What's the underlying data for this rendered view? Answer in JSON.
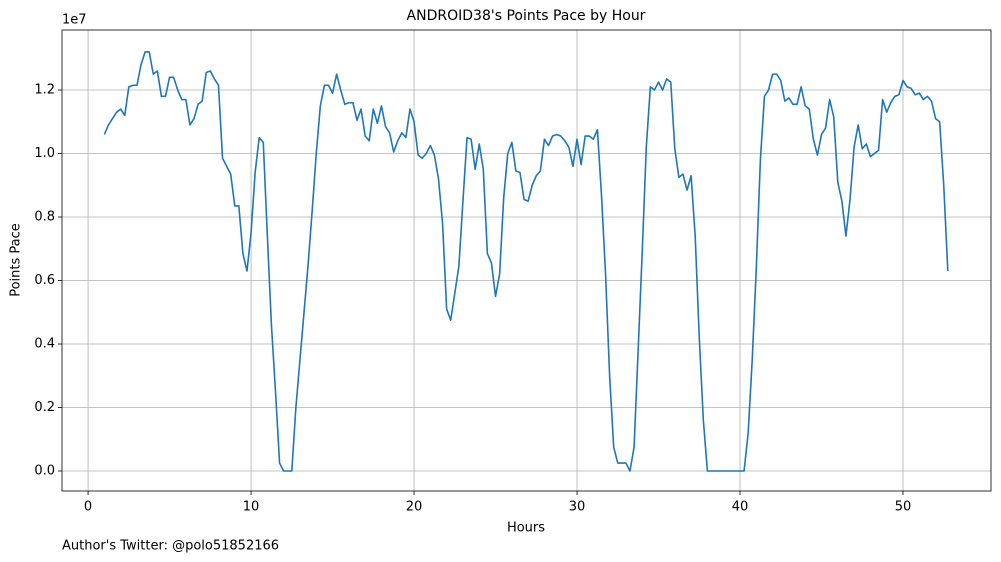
{
  "chart_data": {
    "type": "line",
    "title": "ANDROID38's Points Pace by Hour",
    "xlabel": "Hours",
    "ylabel": "Points Pace",
    "y_offset_label": "1e7",
    "footnote": "Author's Twitter: @polo51852166",
    "color": "#1f77b4",
    "grid": true,
    "xlim": [
      -1.6,
      55.4
    ],
    "xticks": [
      0,
      10,
      20,
      30,
      40,
      50
    ],
    "ylim": [
      -0.063,
      1.389
    ],
    "yticks": [
      {
        "value": 0,
        "label": "0.0"
      },
      0.2,
      0.4,
      0.6,
      0.8,
      {
        "value": 1,
        "label": "1.0"
      },
      1.2
    ],
    "x": [
      1,
      1.25,
      1.5,
      1.75,
      2,
      2.25,
      2.5,
      2.75,
      3,
      3.25,
      3.5,
      3.75,
      4,
      4.25,
      4.5,
      4.75,
      5,
      5.25,
      5.5,
      5.75,
      6,
      6.25,
      6.5,
      6.75,
      7,
      7.25,
      7.5,
      7.75,
      8,
      8.25,
      8.5,
      8.75,
      9,
      9.25,
      9.5,
      9.75,
      10,
      10.25,
      10.5,
      10.75,
      11,
      11.25,
      11.5,
      11.75,
      12,
      12.25,
      12.5,
      12.75,
      13,
      13.25,
      13.5,
      13.75,
      14,
      14.25,
      14.5,
      14.75,
      15,
      15.25,
      15.5,
      15.75,
      16,
      16.25,
      16.5,
      16.75,
      17,
      17.25,
      17.5,
      17.75,
      18,
      18.25,
      18.5,
      18.75,
      19,
      19.25,
      19.5,
      19.75,
      20,
      20.25,
      20.5,
      20.75,
      21,
      21.25,
      21.5,
      21.75,
      22,
      22.25,
      22.5,
      22.75,
      23,
      23.25,
      23.5,
      23.75,
      24,
      24.25,
      24.5,
      24.75,
      25,
      25.25,
      25.5,
      25.75,
      26,
      26.25,
      26.5,
      26.75,
      27,
      27.25,
      27.5,
      27.75,
      28,
      28.25,
      28.5,
      28.75,
      29,
      29.25,
      29.5,
      29.75,
      30,
      30.25,
      30.5,
      30.75,
      31,
      31.25,
      31.5,
      31.75,
      32,
      32.25,
      32.5,
      32.75,
      33,
      33.25,
      33.5,
      33.75,
      34,
      34.25,
      34.5,
      34.75,
      35,
      35.25,
      35.5,
      35.75,
      36,
      36.25,
      36.5,
      36.75,
      37,
      37.25,
      37.5,
      37.75,
      38,
      38.25,
      38.5,
      38.75,
      39,
      39.25,
      39.5,
      39.75,
      40,
      40.25,
      40.5,
      40.75,
      41,
      41.25,
      41.5,
      41.75,
      42,
      42.25,
      42.5,
      42.75,
      43,
      43.25,
      43.5,
      43.75,
      44,
      44.25,
      44.5,
      44.75,
      45,
      45.25,
      45.5,
      45.75,
      46,
      46.25,
      46.5,
      46.75,
      47,
      47.25,
      47.5,
      47.75,
      48,
      48.25,
      48.5,
      48.75,
      49,
      49.25,
      49.5,
      49.75,
      50,
      50.25,
      50.5,
      50.75,
      51,
      51.25,
      51.5,
      51.75,
      52,
      52.25,
      52.5,
      52.75
    ],
    "values": [
      1.06,
      1.09,
      1.11,
      1.13,
      1.14,
      1.12,
      1.21,
      1.215,
      1.215,
      1.28,
      1.32,
      1.32,
      1.25,
      1.26,
      1.18,
      1.18,
      1.24,
      1.24,
      1.2,
      1.17,
      1.17,
      1.09,
      1.11,
      1.155,
      1.165,
      1.255,
      1.26,
      1.235,
      1.215,
      0.985,
      0.96,
      0.935,
      0.835,
      0.835,
      0.685,
      0.63,
      0.75,
      0.94,
      1.05,
      1.035,
      0.74,
      0.46,
      0.25,
      0.025,
      0,
      0,
      0,
      0.2,
      0.35,
      0.5,
      0.65,
      0.82,
      1.0,
      1.15,
      1.215,
      1.215,
      1.19,
      1.25,
      1.2,
      1.155,
      1.16,
      1.16,
      1.105,
      1.14,
      1.055,
      1.04,
      1.14,
      1.095,
      1.15,
      1.085,
      1.065,
      1.005,
      1.04,
      1.065,
      1.05,
      1.14,
      1.1,
      0.995,
      0.985,
      1.0,
      1.025,
      0.995,
      0.92,
      0.78,
      0.51,
      0.475,
      0.56,
      0.645,
      0.85,
      1.05,
      1.045,
      0.95,
      1.03,
      0.95,
      0.685,
      0.655,
      0.55,
      0.62,
      0.86,
      1.0,
      1.035,
      0.945,
      0.94,
      0.855,
      0.85,
      0.9,
      0.93,
      0.945,
      1.045,
      1.025,
      1.055,
      1.06,
      1.055,
      1.04,
      1.02,
      0.96,
      1.045,
      0.965,
      1.055,
      1.055,
      1.045,
      1.075,
      0.87,
      0.62,
      0.3,
      0.075,
      0.025,
      0.025,
      0.025,
      0,
      0.075,
      0.38,
      0.69,
      1.02,
      1.21,
      1.2,
      1.225,
      1.2,
      1.235,
      1.225,
      1.015,
      0.925,
      0.935,
      0.885,
      0.93,
      0.74,
      0.42,
      0.16,
      0,
      0,
      0,
      0,
      0,
      0,
      0,
      0,
      0,
      0,
      0.12,
      0.35,
      0.64,
      0.98,
      1.18,
      1.2,
      1.25,
      1.25,
      1.23,
      1.165,
      1.175,
      1.155,
      1.155,
      1.21,
      1.15,
      1.14,
      1.045,
      0.995,
      1.06,
      1.08,
      1.17,
      1.115,
      0.91,
      0.85,
      0.74,
      0.855,
      1.02,
      1.09,
      1.015,
      1.03,
      0.99,
      1.0,
      1.01,
      1.17,
      1.13,
      1.16,
      1.18,
      1.185,
      1.23,
      1.21,
      1.205,
      1.185,
      1.19,
      1.17,
      1.18,
      1.165,
      1.11,
      1.1,
      0.9,
      0.63
    ]
  }
}
